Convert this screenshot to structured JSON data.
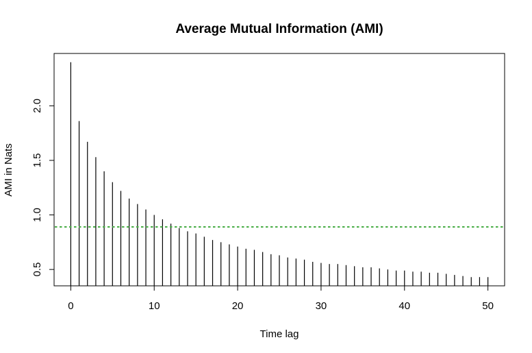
{
  "chart_data": {
    "type": "bar",
    "title": "Average Mutual Information (AMI)",
    "xlabel": "Time lag",
    "ylabel": "AMI in Nats",
    "xlim": [
      -2,
      52
    ],
    "ylim": [
      0.35,
      2.48
    ],
    "x_ticks": [
      "0",
      "10",
      "20",
      "30",
      "40",
      "50"
    ],
    "y_ticks": [
      "0.5",
      "1.0",
      "1.5",
      "2.0"
    ],
    "x": [
      0,
      1,
      2,
      3,
      4,
      5,
      6,
      7,
      8,
      9,
      10,
      11,
      12,
      13,
      14,
      15,
      16,
      17,
      18,
      19,
      20,
      21,
      22,
      23,
      24,
      25,
      26,
      27,
      28,
      29,
      30,
      31,
      32,
      33,
      34,
      35,
      36,
      37,
      38,
      39,
      40,
      41,
      42,
      43,
      44,
      45,
      46,
      47,
      48,
      49,
      50
    ],
    "values": [
      2.4,
      1.86,
      1.67,
      1.53,
      1.4,
      1.3,
      1.22,
      1.15,
      1.1,
      1.05,
      1.0,
      0.96,
      0.92,
      0.88,
      0.85,
      0.83,
      0.8,
      0.77,
      0.75,
      0.73,
      0.71,
      0.69,
      0.68,
      0.66,
      0.64,
      0.63,
      0.61,
      0.6,
      0.59,
      0.57,
      0.56,
      0.55,
      0.55,
      0.54,
      0.53,
      0.52,
      0.52,
      0.51,
      0.5,
      0.49,
      0.49,
      0.48,
      0.48,
      0.47,
      0.47,
      0.46,
      0.45,
      0.44,
      0.43,
      0.43,
      0.43
    ],
    "baseline": 0.35,
    "threshold": 0.89,
    "threshold_color": "#4daf4a",
    "bar_color": "#000000",
    "grid": false
  }
}
